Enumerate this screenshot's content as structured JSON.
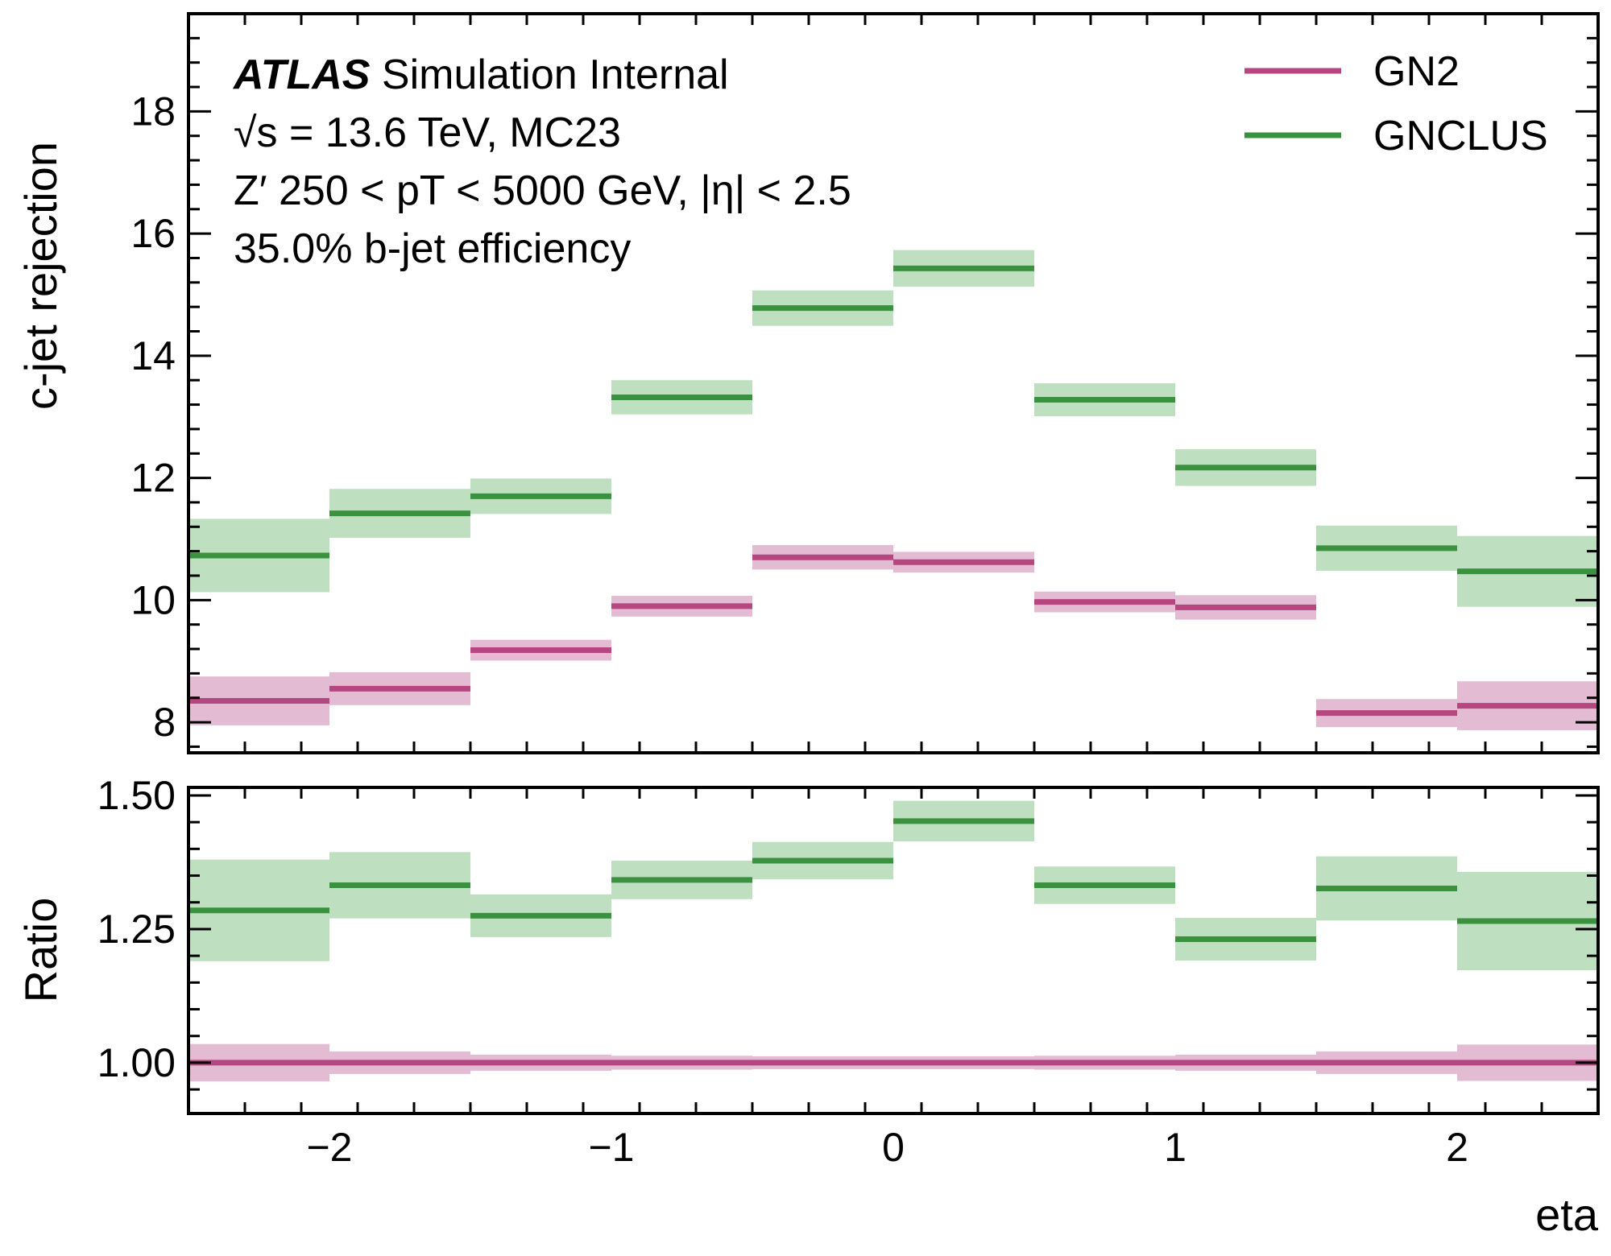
{
  "chart_data": {
    "type": "step",
    "x_edges": [
      -2.5,
      -2.0,
      -1.5,
      -1.0,
      -0.5,
      0.0,
      0.5,
      1.0,
      1.5,
      2.0,
      2.5
    ],
    "xlabel": "eta",
    "xlim": [
      -2.5,
      2.5
    ],
    "x_ticks": [
      -2,
      -1,
      0,
      1,
      2
    ],
    "x_tick_labels": [
      "−2",
      "−1",
      "0",
      "1",
      "2"
    ],
    "annotation": {
      "line1_bold": "ATLAS",
      "line1_rest": " Simulation Internal",
      "line2": "√s = 13.6 TeV, MC23",
      "line3": "Z′ 250 < pT < 5000 GeV, |η| < 2.5",
      "line4": "35.0% b-jet efficiency"
    },
    "legend": {
      "position": "upper right",
      "entries": [
        "GN2",
        "GNCLUS"
      ]
    },
    "colors": {
      "GN2": "#b5467f",
      "GNCLUS": "#3a923f",
      "GN2_band": "#e3bcd4",
      "GNCLUS_band": "#bfdfc1"
    },
    "main_panel": {
      "ylabel": "c-jet rejection",
      "ylim": [
        7.5,
        19.6
      ],
      "y_ticks": [
        8,
        10,
        12,
        14,
        16,
        18
      ],
      "y_tick_labels": [
        "8",
        "10",
        "12",
        "14",
        "16",
        "18"
      ],
      "series": [
        {
          "name": "GN2",
          "values": [
            8.35,
            8.55,
            9.18,
            9.9,
            10.7,
            10.62,
            9.97,
            9.88,
            8.15,
            8.27
          ],
          "unc": [
            0.4,
            0.27,
            0.17,
            0.17,
            0.2,
            0.17,
            0.17,
            0.2,
            0.23,
            0.4
          ]
        },
        {
          "name": "GNCLUS",
          "values": [
            10.73,
            11.42,
            11.7,
            13.32,
            14.78,
            15.43,
            13.28,
            12.17,
            10.85,
            10.47
          ],
          "unc": [
            0.6,
            0.4,
            0.29,
            0.28,
            0.29,
            0.3,
            0.27,
            0.3,
            0.37,
            0.58
          ]
        }
      ]
    },
    "ratio_panel": {
      "ylabel": "Ratio",
      "ylim": [
        0.905,
        1.515
      ],
      "y_ticks": [
        1.0,
        1.25,
        1.5
      ],
      "y_tick_labels": [
        "1.00",
        "1.25",
        "1.50"
      ],
      "series": [
        {
          "name": "GN2",
          "values": [
            1.0,
            1.0,
            1.0,
            1.0,
            1.0,
            1.0,
            1.0,
            1.0,
            1.0,
            1.0
          ],
          "unc": [
            0.035,
            0.021,
            0.015,
            0.013,
            0.012,
            0.012,
            0.013,
            0.015,
            0.021,
            0.034
          ]
        },
        {
          "name": "GNCLUS",
          "values": [
            1.285,
            1.332,
            1.275,
            1.342,
            1.378,
            1.452,
            1.332,
            1.231,
            1.326,
            1.265
          ],
          "unc": [
            0.095,
            0.062,
            0.04,
            0.036,
            0.035,
            0.038,
            0.035,
            0.04,
            0.06,
            0.092
          ]
        }
      ]
    }
  }
}
